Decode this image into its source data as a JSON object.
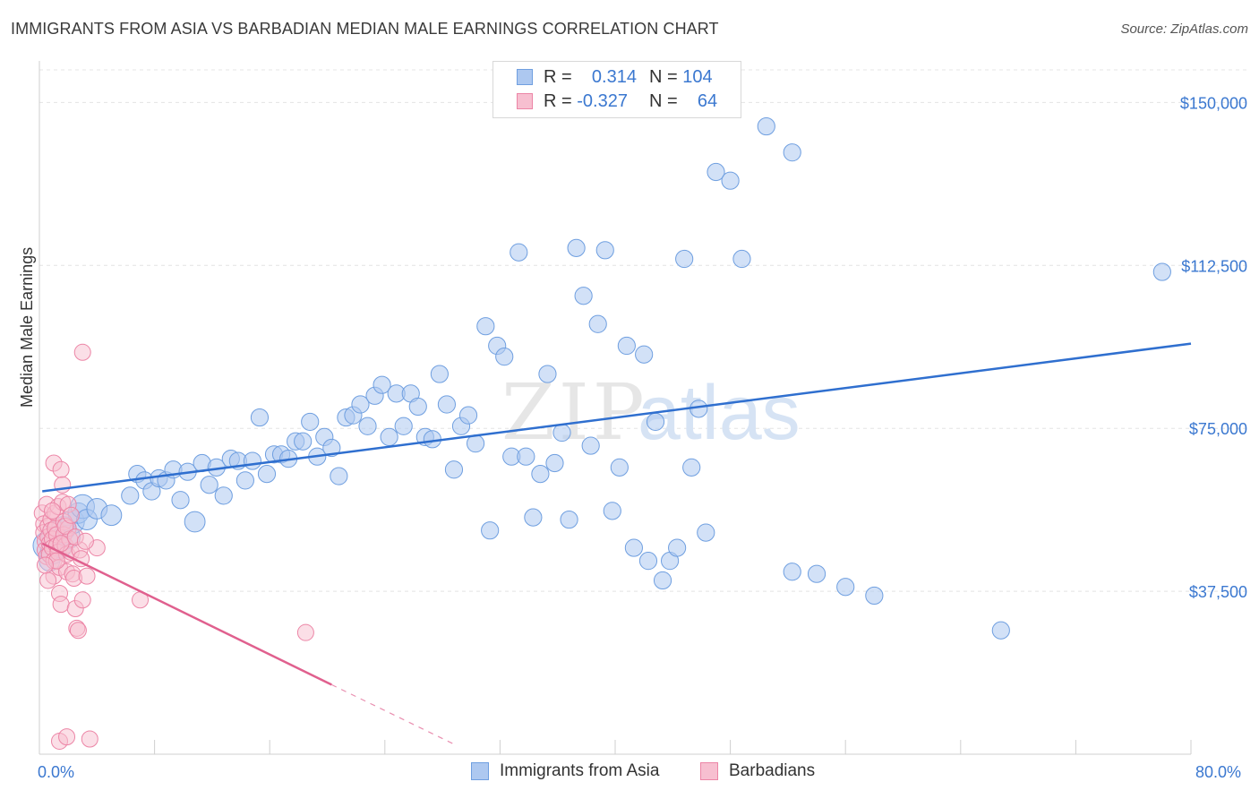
{
  "title": "IMMIGRANTS FROM ASIA VS BARBADIAN MEDIAN MALE EARNINGS CORRELATION CHART",
  "source": "Source: ZipAtlas.com",
  "watermark": {
    "zip": "ZIP",
    "atlas": "atlas"
  },
  "legend_top": {
    "r_label": "R =",
    "n_label": "N =",
    "series": [
      {
        "r": "0.314",
        "n": "104"
      },
      {
        "r": "-0.327",
        "n": "64"
      }
    ]
  },
  "colors": {
    "blue": "#6f9fe0",
    "blue_fill": "#adc8f0",
    "blue_line": "#2f6fcf",
    "pink": "#ec85a6",
    "pink_fill": "#f7bfd0",
    "pink_line": "#e0608e",
    "axis_text": "#3b78d0"
  },
  "chart_data": {
    "type": "scatter",
    "xlabel": "",
    "ylabel": "Median Male Earnings",
    "xlim": [
      0,
      80
    ],
    "ylim": [
      0,
      157500
    ],
    "x_tick_labels": [
      "0.0%",
      "80.0%"
    ],
    "y_ticks": [
      37500,
      75000,
      112500,
      150000
    ],
    "y_tick_labels": [
      "$37,500",
      "$75,000",
      "$112,500",
      "$150,000"
    ],
    "series": [
      {
        "name": "Immigrants from Asia",
        "trend": {
          "x": [
            0.2,
            80
          ],
          "y": [
            60500,
            94500
          ]
        },
        "points": [
          [
            0.5,
            48000,
            16
          ],
          [
            0.7,
            44500,
            12
          ],
          [
            0.9,
            46500,
            14
          ],
          [
            1.1,
            50500,
            16
          ],
          [
            1.3,
            49000,
            14
          ],
          [
            1.5,
            47500,
            12
          ],
          [
            1.7,
            52000,
            14
          ],
          [
            2.0,
            50000,
            14
          ],
          [
            2.3,
            53500,
            14
          ],
          [
            2.7,
            55500,
            12
          ],
          [
            3.0,
            57000,
            14
          ],
          [
            3.3,
            54000,
            12
          ],
          [
            4.0,
            56500,
            12
          ],
          [
            5.0,
            55000,
            12
          ],
          [
            6.3,
            59500,
            10
          ],
          [
            6.8,
            64500,
            10
          ],
          [
            7.3,
            63000,
            10
          ],
          [
            7.8,
            60500,
            10
          ],
          [
            8.3,
            63500,
            10
          ],
          [
            8.8,
            63000,
            10
          ],
          [
            9.3,
            65500,
            10
          ],
          [
            9.8,
            58500,
            10
          ],
          [
            10.3,
            65000,
            10
          ],
          [
            10.8,
            53500,
            12
          ],
          [
            11.3,
            67000,
            10
          ],
          [
            11.8,
            62000,
            10
          ],
          [
            12.3,
            66000,
            10
          ],
          [
            12.8,
            59500,
            10
          ],
          [
            13.3,
            68000,
            10
          ],
          [
            13.8,
            67500,
            10
          ],
          [
            14.3,
            63000,
            10
          ],
          [
            14.8,
            67500,
            10
          ],
          [
            15.3,
            77500,
            10
          ],
          [
            15.8,
            64500,
            10
          ],
          [
            16.3,
            69000,
            10
          ],
          [
            16.8,
            69000,
            10
          ],
          [
            17.3,
            68000,
            10
          ],
          [
            17.8,
            72000,
            10
          ],
          [
            18.3,
            72000,
            10
          ],
          [
            18.8,
            76500,
            10
          ],
          [
            19.3,
            68500,
            10
          ],
          [
            19.8,
            73000,
            10
          ],
          [
            20.3,
            70500,
            10
          ],
          [
            20.8,
            64000,
            10
          ],
          [
            21.3,
            77500,
            10
          ],
          [
            21.8,
            78000,
            10
          ],
          [
            22.3,
            80500,
            10
          ],
          [
            22.8,
            75500,
            10
          ],
          [
            23.3,
            82500,
            10
          ],
          [
            23.8,
            85000,
            10
          ],
          [
            24.3,
            73000,
            10
          ],
          [
            24.8,
            83000,
            10
          ],
          [
            25.3,
            75500,
            10
          ],
          [
            25.8,
            83000,
            10
          ],
          [
            26.3,
            80000,
            10
          ],
          [
            26.8,
            73000,
            10
          ],
          [
            27.3,
            72500,
            10
          ],
          [
            27.8,
            87500,
            10
          ],
          [
            28.3,
            80500,
            10
          ],
          [
            28.8,
            65500,
            10
          ],
          [
            29.3,
            75500,
            10
          ],
          [
            29.8,
            78000,
            10
          ],
          [
            30.3,
            71500,
            10
          ],
          [
            31.0,
            98500,
            10
          ],
          [
            31.3,
            51500,
            10
          ],
          [
            31.8,
            94000,
            10
          ],
          [
            32.3,
            91500,
            10
          ],
          [
            32.8,
            68500,
            10
          ],
          [
            33.3,
            115500,
            10
          ],
          [
            33.8,
            68500,
            10
          ],
          [
            34.3,
            54500,
            10
          ],
          [
            34.8,
            64500,
            10
          ],
          [
            35.3,
            87500,
            10
          ],
          [
            35.8,
            67000,
            10
          ],
          [
            36.3,
            74000,
            10
          ],
          [
            36.8,
            54000,
            10
          ],
          [
            37.3,
            116500,
            10
          ],
          [
            37.8,
            105500,
            10
          ],
          [
            38.3,
            71000,
            10
          ],
          [
            38.8,
            99000,
            10
          ],
          [
            39.3,
            116000,
            10
          ],
          [
            39.8,
            56000,
            10
          ],
          [
            40.3,
            66000,
            10
          ],
          [
            40.8,
            94000,
            10
          ],
          [
            41.3,
            47500,
            10
          ],
          [
            42.0,
            92000,
            10
          ],
          [
            42.3,
            44500,
            10
          ],
          [
            42.8,
            76500,
            10
          ],
          [
            43.3,
            40000,
            10
          ],
          [
            43.8,
            44500,
            10
          ],
          [
            44.3,
            47500,
            10
          ],
          [
            44.8,
            114000,
            10
          ],
          [
            45.3,
            66000,
            10
          ],
          [
            45.8,
            79500,
            10
          ],
          [
            46.3,
            51000,
            10
          ],
          [
            47.0,
            134000,
            10
          ],
          [
            48.0,
            132000,
            10
          ],
          [
            48.8,
            114000,
            10
          ],
          [
            50.5,
            144500,
            10
          ],
          [
            52.3,
            138500,
            10
          ],
          [
            52.3,
            42000,
            10
          ],
          [
            54.0,
            41500,
            10
          ],
          [
            56.0,
            38500,
            10
          ],
          [
            58.0,
            36500,
            10
          ],
          [
            66.8,
            28500,
            10
          ],
          [
            78.0,
            111000,
            10
          ]
        ]
      },
      {
        "name": "Barbadians",
        "trend": {
          "x": [
            0.2,
            20.3
          ],
          "y": [
            48500,
            16000
          ]
        },
        "trend_dashed": {
          "x": [
            20.3,
            29.0
          ],
          "y": [
            16000,
            2000
          ]
        },
        "points": [
          [
            0.2,
            55500
          ],
          [
            0.3,
            53000
          ],
          [
            0.3,
            51000
          ],
          [
            0.4,
            49000
          ],
          [
            0.4,
            47000
          ],
          [
            0.5,
            57500
          ],
          [
            0.5,
            45500
          ],
          [
            0.6,
            52500
          ],
          [
            0.6,
            50000
          ],
          [
            0.7,
            48500
          ],
          [
            0.7,
            46000
          ],
          [
            0.8,
            54000
          ],
          [
            0.8,
            51500
          ],
          [
            0.9,
            49500
          ],
          [
            0.9,
            47500
          ],
          [
            1.0,
            44500
          ],
          [
            1.0,
            41000
          ],
          [
            1.0,
            67000
          ],
          [
            1.1,
            55500
          ],
          [
            1.1,
            52000
          ],
          [
            1.2,
            50500
          ],
          [
            1.2,
            48000
          ],
          [
            1.3,
            57000
          ],
          [
            1.3,
            46500
          ],
          [
            1.4,
            43000
          ],
          [
            1.4,
            37000
          ],
          [
            1.5,
            65500
          ],
          [
            1.5,
            34500
          ],
          [
            1.6,
            62000
          ],
          [
            1.6,
            58000
          ],
          [
            1.7,
            53500
          ],
          [
            1.7,
            50500
          ],
          [
            1.8,
            48000
          ],
          [
            1.9,
            46000
          ],
          [
            1.9,
            42000
          ],
          [
            2.0,
            57500
          ],
          [
            2.0,
            52000
          ],
          [
            2.1,
            49500
          ],
          [
            2.2,
            46500
          ],
          [
            2.3,
            41500
          ],
          [
            2.4,
            40500
          ],
          [
            2.5,
            33500
          ],
          [
            2.6,
            29000
          ],
          [
            2.7,
            28500
          ],
          [
            3.0,
            92500
          ],
          [
            3.0,
            35500
          ],
          [
            2.8,
            47000
          ],
          [
            4.0,
            47500
          ],
          [
            3.3,
            41000
          ],
          [
            2.9,
            45000
          ],
          [
            1.4,
            3000
          ],
          [
            1.9,
            4000
          ],
          [
            3.5,
            3500
          ],
          [
            7.0,
            35500
          ],
          [
            18.5,
            28000
          ],
          [
            0.6,
            40000
          ],
          [
            0.9,
            56000
          ],
          [
            1.2,
            44500
          ],
          [
            1.8,
            52500
          ],
          [
            2.2,
            55000
          ],
          [
            0.4,
            43500
          ],
          [
            1.5,
            48500
          ],
          [
            2.5,
            50000
          ],
          [
            3.2,
            49000
          ]
        ]
      }
    ]
  },
  "legend_bottom": [
    {
      "label": "Immigrants from Asia"
    },
    {
      "label": "Barbadians"
    }
  ]
}
